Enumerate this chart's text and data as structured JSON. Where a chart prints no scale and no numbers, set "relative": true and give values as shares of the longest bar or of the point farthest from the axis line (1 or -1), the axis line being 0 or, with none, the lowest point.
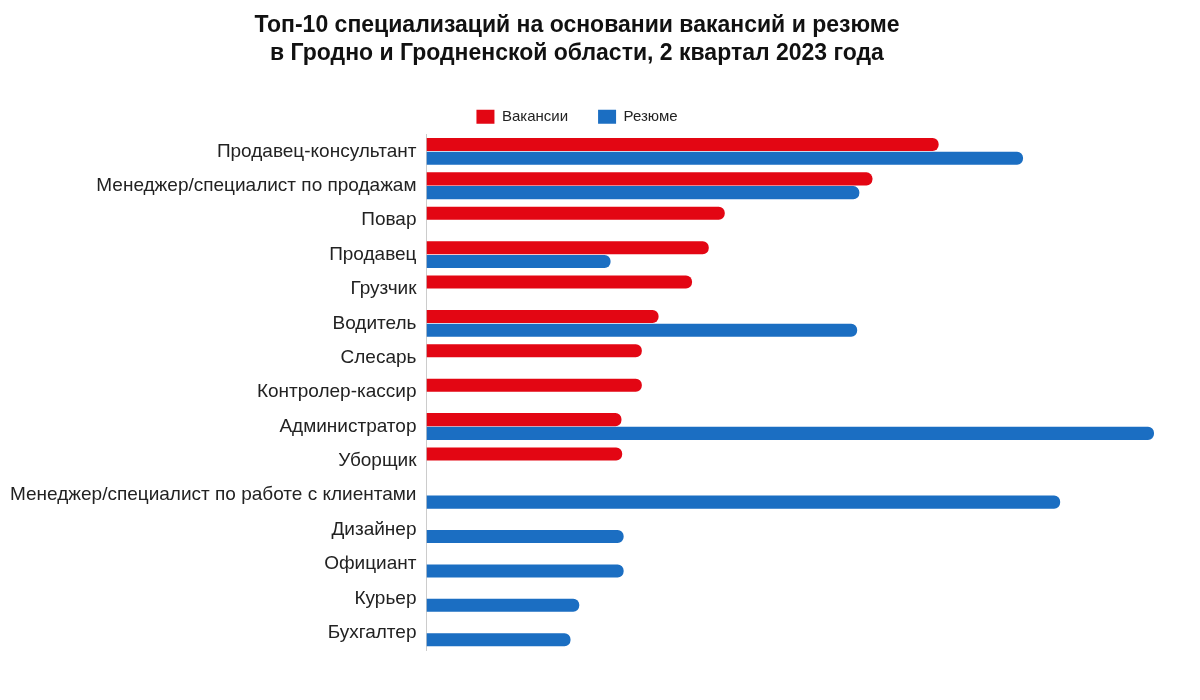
{
  "chart_data": {
    "type": "bar",
    "orientation": "horizontal",
    "relative": true,
    "title": "Топ-10 специализаций на основании вакансий и резюме\nв Гродно и Гродненской области, 2 квартал 2023 года",
    "legend": "top",
    "grid": false,
    "categories": [
      "Продавец-консультант",
      "Менеджер/специалист по продажам",
      "Повар",
      "Продавец",
      "Грузчик",
      "Водитель",
      "Слесарь",
      "Контролер-кассир",
      "Администратор",
      "Уборщик",
      "Менеджер/специалист по работе с клиентами",
      "Дизайнер",
      "Официант",
      "Курьер",
      "Бухгалтер"
    ],
    "series": [
      {
        "name": "Вакансии",
        "color": "#e30613",
        "values": [
          0.704,
          0.613,
          0.41,
          0.388,
          0.365,
          0.319,
          0.296,
          0.296,
          0.268,
          0.269,
          null,
          null,
          null,
          null,
          null
        ]
      },
      {
        "name": "Резюме",
        "color": "#1b6ec2",
        "values": [
          0.82,
          0.595,
          null,
          0.253,
          null,
          0.592,
          null,
          null,
          1,
          null,
          0.871,
          0.271,
          0.271,
          0.21,
          0.198
        ]
      }
    ]
  }
}
